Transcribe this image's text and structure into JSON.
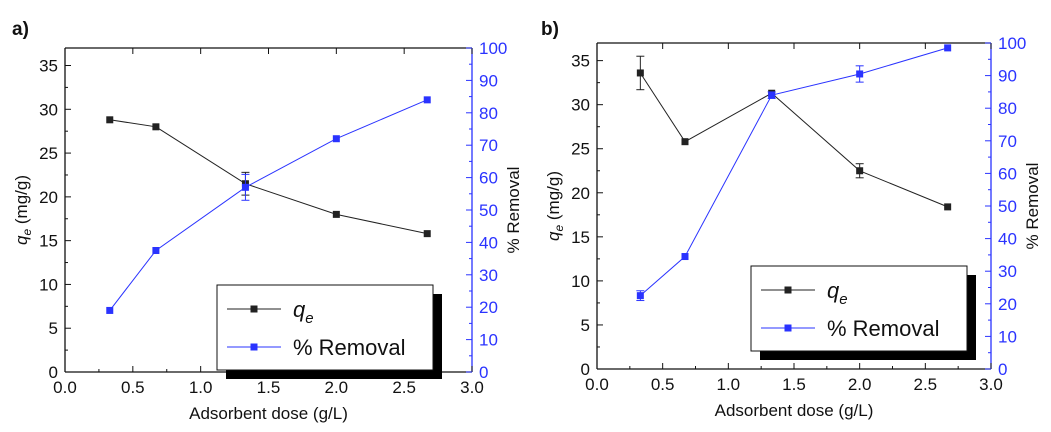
{
  "colors": {
    "series_qe": "#222222",
    "series_removal": "#2a33ff",
    "axis": "#111111"
  },
  "chart_data": [
    {
      "type": "line",
      "panel_label": "a)",
      "xlabel": "Adsorbent dose (g/L)",
      "ylabel_main": "q",
      "ylabel_sub": "e",
      "ylabel_unit": " (mg/g)",
      "y2label": "% Removal",
      "xlim": [
        0.0,
        3.0
      ],
      "ylim": [
        0,
        37
      ],
      "y2lim": [
        0,
        100
      ],
      "xticks": [
        "0.0",
        "0.5",
        "1.0",
        "1.5",
        "2.0",
        "2.5",
        "3.0"
      ],
      "yticks": [
        "0",
        "5",
        "10",
        "15",
        "20",
        "25",
        "30",
        "35"
      ],
      "y2ticks": [
        "0",
        "10",
        "20",
        "30",
        "40",
        "50",
        "60",
        "70",
        "80",
        "90",
        "100"
      ],
      "legend_position": "bottom-right",
      "series": [
        {
          "name": "q",
          "name_sub": "e",
          "axis": "left",
          "x": [
            0.33,
            0.67,
            1.33,
            2.0,
            2.67
          ],
          "y": [
            28.8,
            28.0,
            21.5,
            18.0,
            15.8
          ],
          "err": [
            0,
            0,
            1.3,
            0,
            0
          ]
        },
        {
          "name": "% Removal",
          "axis": "right",
          "x": [
            0.33,
            0.67,
            1.33,
            2.0,
            2.67
          ],
          "y": [
            19,
            37.5,
            57,
            72,
            84
          ],
          "err": [
            0,
            0,
            4,
            0,
            0
          ]
        }
      ]
    },
    {
      "type": "line",
      "panel_label": "b)",
      "xlabel": "Adsorbent dose (g/L)",
      "ylabel_main": "q",
      "ylabel_sub": "e",
      "ylabel_unit": " (mg/g)",
      "y2label": "% Removal",
      "xlim": [
        0.0,
        3.0
      ],
      "ylim": [
        0,
        37
      ],
      "y2lim": [
        0,
        100
      ],
      "xticks": [
        "0.0",
        "0.5",
        "1.0",
        "1.5",
        "2.0",
        "2.5",
        "3.0"
      ],
      "yticks": [
        "0",
        "5",
        "10",
        "15",
        "20",
        "25",
        "30",
        "35"
      ],
      "y2ticks": [
        "0",
        "10",
        "20",
        "30",
        "40",
        "50",
        "60",
        "70",
        "80",
        "90",
        "100"
      ],
      "legend_position": "bottom-right",
      "series": [
        {
          "name": "q",
          "name_sub": "e",
          "axis": "left",
          "x": [
            0.33,
            0.67,
            1.33,
            2.0,
            2.67
          ],
          "y": [
            33.6,
            25.8,
            31.3,
            22.5,
            18.4
          ],
          "err": [
            1.9,
            0,
            0,
            0.8,
            0
          ]
        },
        {
          "name": "% Removal",
          "axis": "right",
          "x": [
            0.33,
            0.67,
            1.33,
            2.0,
            2.67
          ],
          "y": [
            22.5,
            34.5,
            84,
            90.5,
            98.5
          ],
          "err": [
            1.5,
            0,
            1,
            2.5,
            0
          ]
        }
      ]
    }
  ]
}
